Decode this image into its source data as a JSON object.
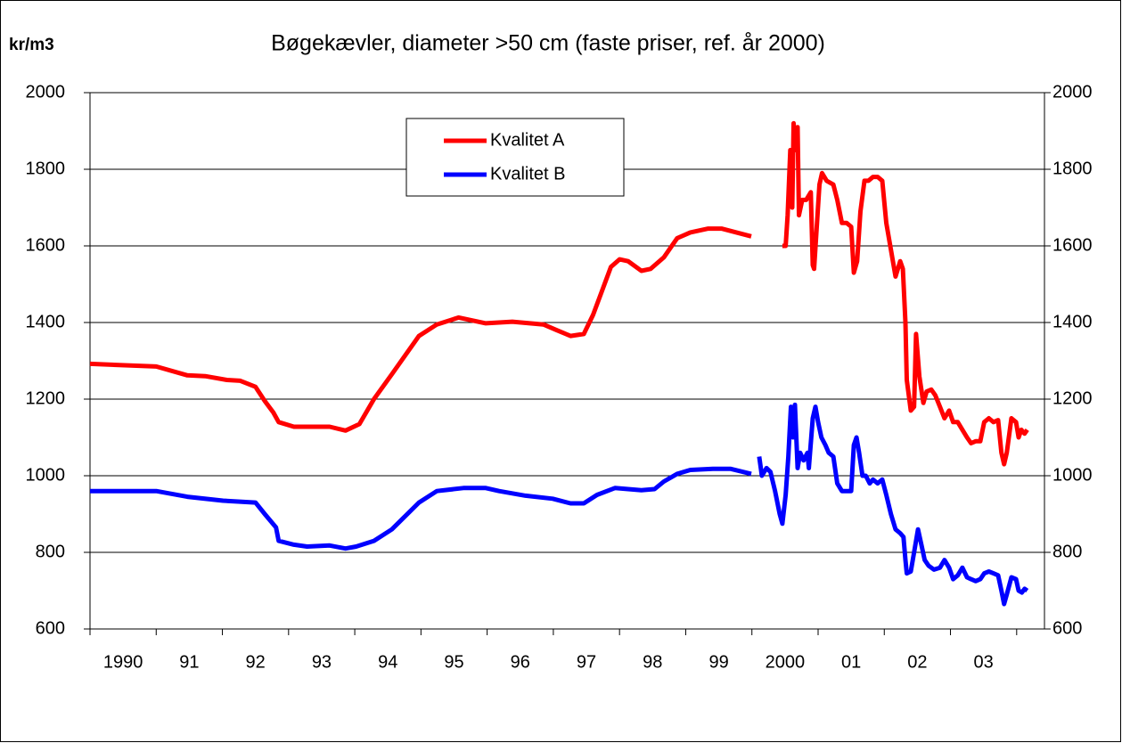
{
  "chart_data": {
    "type": "line",
    "title": "Bøgekævler, diameter >50 cm (faste priser, ref. år 2000)",
    "y_label": "kr/m3",
    "xlim": [
      1990,
      2004.42
    ],
    "xticks": [
      {
        "value": 1990.5,
        "label": "1990"
      },
      {
        "value": 1991.5,
        "label": "91"
      },
      {
        "value": 1992.5,
        "label": "92"
      },
      {
        "value": 1993.5,
        "label": "93"
      },
      {
        "value": 1994.5,
        "label": "94"
      },
      {
        "value": 1995.5,
        "label": "95"
      },
      {
        "value": 1996.5,
        "label": "96"
      },
      {
        "value": 1997.5,
        "label": "97"
      },
      {
        "value": 1998.5,
        "label": "98"
      },
      {
        "value": 1999.5,
        "label": "99"
      },
      {
        "value": 2000.5,
        "label": "2000"
      },
      {
        "value": 2001.5,
        "label": "01"
      },
      {
        "value": 2002.5,
        "label": "02"
      },
      {
        "value": 2003.5,
        "label": "03"
      }
    ],
    "ylim": [
      600,
      2000
    ],
    "yticks": [
      600,
      800,
      1000,
      1200,
      1400,
      1600,
      1800,
      2000
    ],
    "y2lim": [
      600,
      2000
    ],
    "y2ticks": [
      600,
      800,
      1000,
      1200,
      1400,
      1600,
      1800,
      2000
    ],
    "grid": true,
    "legend": "top",
    "series": [
      {
        "name": "Kvalitet A",
        "color": "#ff0000",
        "x": [
          1990,
          1991,
          1991.47,
          1991.74,
          1992.07,
          1992.27,
          1992.5,
          1992.64,
          1992.77,
          1992.85,
          1993.08,
          1993.62,
          1993.86,
          1994.07,
          1994.29,
          1994.56,
          1994.97,
          1995.24,
          1995.57,
          1995.98,
          1996.38,
          1996.85,
          1997.05,
          1997.26,
          1997.46,
          1997.6,
          1997.73,
          1997.87,
          1998,
          1998.13,
          1998.33,
          1998.47,
          1998.67,
          1998.87,
          1999.07,
          1999.34,
          1999.54,
          1999.99,
          2000.2,
          2000.46,
          2000.51,
          2000.54,
          2000.58,
          2000.61,
          2000.63,
          2000.66,
          2000.69,
          2000.71,
          2000.76,
          2000.82,
          2000.89,
          2000.92,
          2000.94,
          2000.98,
          2001.02,
          2001.06,
          2001.13,
          2001.23,
          2001.29,
          2001.36,
          2001.43,
          2001.5,
          2001.54,
          2001.59,
          2001.64,
          2001.7,
          2001.76,
          2001.83,
          2001.9,
          2001.97,
          2002.03,
          2002.1,
          2002.17,
          2002.24,
          2002.28,
          2002.32,
          2002.34,
          2002.4,
          2002.45,
          2002.48,
          2002.53,
          2002.59,
          2002.64,
          2002.71,
          2002.77,
          2002.84,
          2002.91,
          2002.98,
          2003.04,
          2003.11,
          2003.18,
          2003.25,
          2003.31,
          2003.38,
          2003.45,
          2003.51,
          2003.58,
          2003.65,
          2003.72,
          2003.77,
          2003.81,
          2003.85,
          2003.92,
          2003.99,
          2004.03,
          2004.07,
          2004.12,
          2004.16
        ],
        "values": [
          1292,
          1285,
          1262,
          1260,
          1250,
          1248,
          1232,
          1195,
          1165,
          1140,
          1128,
          1128,
          1118,
          1135,
          1200,
          1265,
          1365,
          1395,
          1413,
          1398,
          1402,
          1395,
          1380,
          1365,
          1370,
          1420,
          1480,
          1545,
          1565,
          1560,
          1535,
          1540,
          1570,
          1620,
          1635,
          1645,
          1645,
          1625,
          null,
          1600,
          1600,
          1680,
          1850,
          1700,
          1920,
          1850,
          1910,
          1680,
          1720,
          1720,
          1740,
          1550,
          1540,
          1650,
          1760,
          1790,
          1770,
          1760,
          1720,
          1660,
          1660,
          1650,
          1530,
          1560,
          1690,
          1770,
          1770,
          1780,
          1780,
          1770,
          1660,
          1590,
          1520,
          1560,
          1540,
          1400,
          1250,
          1170,
          1180,
          1370,
          1260,
          1190,
          1220,
          1225,
          1210,
          1180,
          1150,
          1170,
          1140,
          1140,
          1120,
          1100,
          1085,
          1090,
          1090,
          1140,
          1150,
          1140,
          1145,
          1060,
          1030,
          1060,
          1150,
          1140,
          1100,
          1120,
          1110,
          1120
        ]
      },
      {
        "name": "Kvalitet B",
        "color": "#0000ff",
        "x": [
          1990,
          1991,
          1991.47,
          1992.01,
          1992.5,
          1992.64,
          1992.81,
          1992.85,
          1993.08,
          1993.28,
          1993.62,
          1993.86,
          1994.02,
          1994.29,
          1994.56,
          1994.97,
          1995.24,
          1995.64,
          1995.98,
          1996.18,
          1996.58,
          1996.99,
          1997.26,
          1997.46,
          1997.66,
          1997.93,
          1998.13,
          1998.33,
          1998.53,
          1998.67,
          1998.87,
          1999.07,
          1999.41,
          1999.68,
          1999.99,
          2000.05,
          2000.11,
          2000.15,
          2000.22,
          2000.28,
          2000.35,
          2000.42,
          2000.46,
          2000.51,
          2000.55,
          2000.59,
          2000.62,
          2000.65,
          2000.69,
          2000.73,
          2000.78,
          2000.84,
          2000.86,
          2000.92,
          2000.96,
          2001,
          2001.05,
          2001.11,
          2001.16,
          2001.23,
          2001.29,
          2001.36,
          2001.43,
          2001.5,
          2001.54,
          2001.58,
          2001.62,
          2001.67,
          2001.72,
          2001.78,
          2001.83,
          2001.9,
          2001.97,
          2002.03,
          2002.1,
          2002.17,
          2002.24,
          2002.29,
          2002.32,
          2002.34,
          2002.4,
          2002.45,
          2002.51,
          2002.56,
          2002.61,
          2002.67,
          2002.75,
          2002.84,
          2002.91,
          2002.98,
          2003.04,
          2003.11,
          2003.18,
          2003.25,
          2003.31,
          2003.38,
          2003.45,
          2003.51,
          2003.58,
          2003.65,
          2003.72,
          2003.77,
          2003.81,
          2003.85,
          2003.92,
          2003.99,
          2004.03,
          2004.08,
          2004.12,
          2004.16
        ],
        "values": [
          960,
          960,
          945,
          935,
          930,
          900,
          865,
          830,
          820,
          815,
          818,
          810,
          815,
          830,
          860,
          930,
          960,
          968,
          968,
          960,
          948,
          940,
          928,
          928,
          950,
          968,
          965,
          962,
          965,
          985,
          1005,
          1015,
          1018,
          1018,
          1005,
          null,
          1050,
          1000,
          1020,
          1010,
          960,
          900,
          875,
          950,
          1050,
          1180,
          1100,
          1185,
          1020,
          1060,
          1040,
          1060,
          1020,
          1150,
          1180,
          1140,
          1100,
          1080,
          1060,
          1050,
          980,
          960,
          960,
          960,
          1080,
          1100,
          1060,
          1000,
          1000,
          980,
          990,
          980,
          990,
          950,
          900,
          860,
          850,
          840,
          780,
          745,
          750,
          800,
          860,
          820,
          780,
          765,
          755,
          760,
          780,
          760,
          730,
          740,
          760,
          735,
          730,
          725,
          730,
          745,
          750,
          745,
          740,
          700,
          665,
          690,
          735,
          730,
          700,
          695,
          705,
          700
        ]
      }
    ]
  }
}
